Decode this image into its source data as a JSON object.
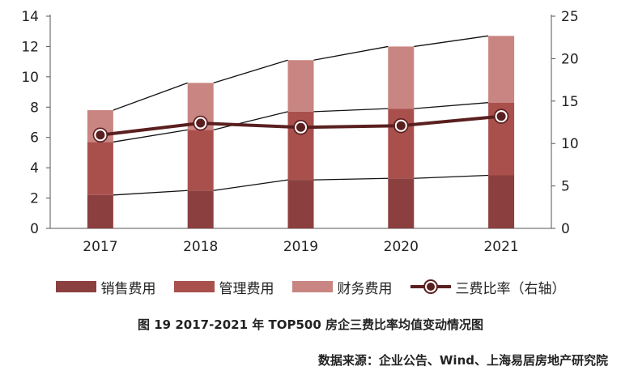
{
  "chart_data": {
    "type": "bar",
    "stacked": true,
    "categories": [
      "2017",
      "2018",
      "2019",
      "2020",
      "2021"
    ],
    "series": [
      {
        "name": "销售费用",
        "type": "bar",
        "axis": "left",
        "color": "#8b3f3f",
        "values": [
          2.2,
          2.5,
          3.2,
          3.3,
          3.5
        ]
      },
      {
        "name": "管理费用",
        "type": "bar",
        "axis": "left",
        "color": "#a9504d",
        "values": [
          3.5,
          4.0,
          4.5,
          4.6,
          4.8
        ]
      },
      {
        "name": "财务费用",
        "type": "bar",
        "axis": "left",
        "color": "#c98581",
        "values": [
          2.1,
          3.1,
          3.4,
          4.1,
          4.4
        ]
      },
      {
        "name": "三费比率（右轴）",
        "type": "line",
        "axis": "right",
        "color": "#5a1f1f",
        "values": [
          11.0,
          12.4,
          11.9,
          12.1,
          13.2
        ]
      }
    ],
    "ylim_left": [
      0,
      14
    ],
    "yticks_left": [
      0,
      2,
      4,
      6,
      8,
      10,
      12,
      14
    ],
    "ylim_right": [
      0,
      25
    ],
    "yticks_right": [
      0,
      5,
      10,
      15,
      20,
      25
    ],
    "legend_position": "bottom",
    "title": "图 19 2017-2021 年 TOP500 房企三费比率均值变动情况图"
  },
  "caption": "图 19 2017-2021 年 TOP500 房企三费比率均值变动情况图",
  "source": "数据来源：企业公告、Wind、上海易居房地产研究院"
}
